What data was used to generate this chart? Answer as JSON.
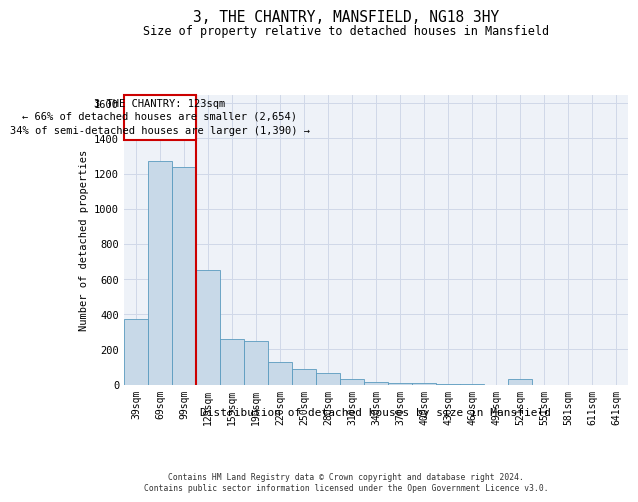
{
  "title": "3, THE CHANTRY, MANSFIELD, NG18 3HY",
  "subtitle": "Size of property relative to detached houses in Mansfield",
  "xlabel": "Distribution of detached houses by size in Mansfield",
  "ylabel": "Number of detached properties",
  "categories": [
    "39sqm",
    "69sqm",
    "99sqm",
    "129sqm",
    "159sqm",
    "190sqm",
    "220sqm",
    "250sqm",
    "280sqm",
    "310sqm",
    "340sqm",
    "370sqm",
    "400sqm",
    "430sqm",
    "460sqm",
    "491sqm",
    "521sqm",
    "551sqm",
    "581sqm",
    "611sqm",
    "641sqm"
  ],
  "values": [
    370,
    1270,
    1240,
    650,
    260,
    250,
    130,
    90,
    65,
    30,
    15,
    8,
    8,
    4,
    4,
    0,
    30,
    0,
    0,
    0,
    0
  ],
  "bar_color": "#c8d9e8",
  "bar_edge_color": "#5a9abf",
  "grid_color": "#d0d8e8",
  "background_color": "#eef2f8",
  "annotation_box_color": "#cc0000",
  "property_line_color": "#cc0000",
  "annotation_text_line1": "3 THE CHANTRY: 123sqm",
  "annotation_text_line2": "← 66% of detached houses are smaller (2,654)",
  "annotation_text_line3": "34% of semi-detached houses are larger (1,390) →",
  "ylim": [
    0,
    1650
  ],
  "yticks": [
    0,
    200,
    400,
    600,
    800,
    1000,
    1200,
    1400,
    1600
  ],
  "footer_line1": "Contains HM Land Registry data © Crown copyright and database right 2024.",
  "footer_line2": "Contains public sector information licensed under the Open Government Licence v3.0."
}
